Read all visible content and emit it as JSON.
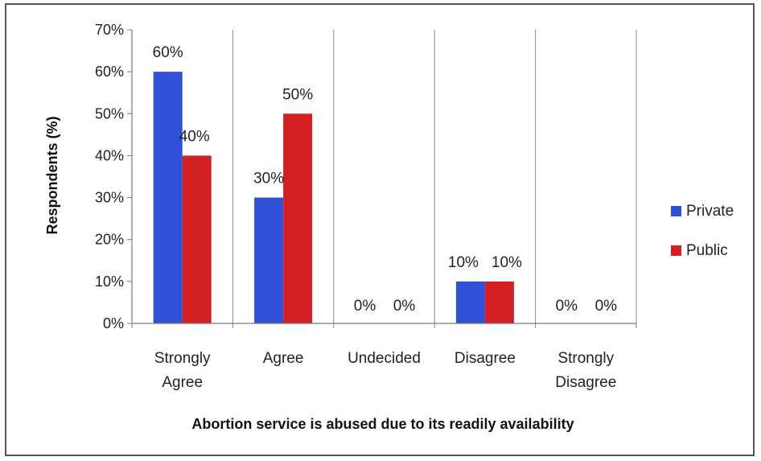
{
  "chart_data": {
    "type": "bar",
    "categories": [
      "Strongly Agree",
      "Agree",
      "Undecided",
      "Disagree",
      "Strongly Disagree"
    ],
    "category_lines": [
      [
        "Strongly",
        "Agree"
      ],
      [
        "Agree"
      ],
      [
        "Undecided"
      ],
      [
        "Disagree"
      ],
      [
        "Strongly",
        "Disagree"
      ]
    ],
    "series": [
      {
        "name": "Private",
        "color": "#3050d8",
        "values": [
          60,
          30,
          0,
          10,
          0
        ],
        "labels": [
          "60%",
          "30%",
          "0%",
          "10%",
          "0%"
        ]
      },
      {
        "name": "Public",
        "color": "#d42020",
        "values": [
          40,
          50,
          0,
          10,
          0
        ],
        "labels": [
          "40%",
          "50%",
          "0%",
          "10%",
          "0%"
        ]
      }
    ],
    "y_ticks": [
      "0%",
      "10%",
      "20%",
      "30%",
      "40%",
      "50%",
      "60%",
      "70%"
    ],
    "ylim": [
      0,
      70
    ],
    "xlabel": "Abortion service is abused due to its readily availability",
    "ylabel": "Respondents (%)",
    "grid": "vertical",
    "legend_position": "right"
  }
}
